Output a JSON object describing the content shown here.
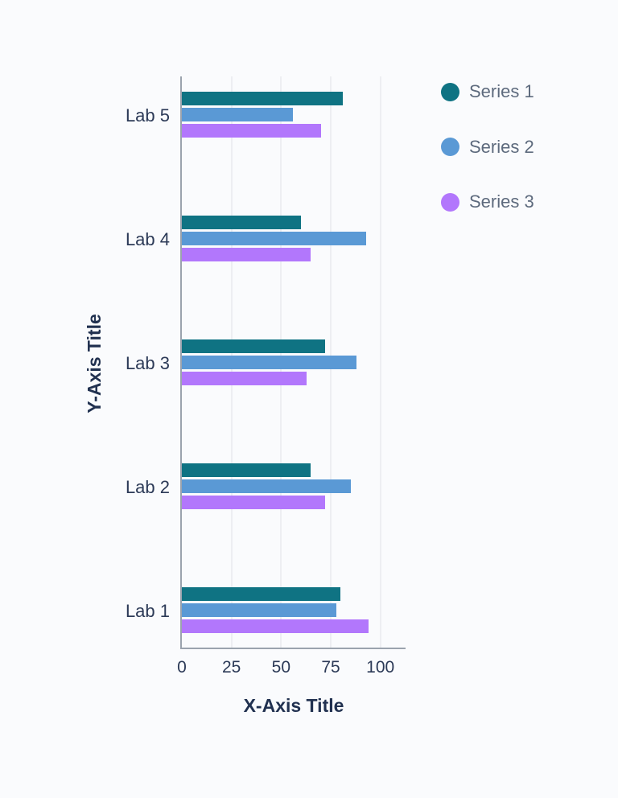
{
  "colors": {
    "background": "#fafbfd",
    "axis_line": "#9ba3ae",
    "gridline": "#edeef2",
    "tick_label": "#2c3a57",
    "axis_title": "#213150",
    "legend_text": "#5d6a7d"
  },
  "chart_data": {
    "type": "bar",
    "orientation": "horizontal",
    "title": "",
    "xlabel": "X-Axis Title",
    "ylabel": "Y-Axis Title",
    "categories": [
      "Lab 5",
      "Lab 4",
      "Lab 3",
      "Lab 2",
      "Lab 1"
    ],
    "category_order": "top-to-bottom",
    "series": [
      {
        "name": "Series 1",
        "color": "#0f7383",
        "values": [
          81,
          60,
          72,
          65,
          80
        ]
      },
      {
        "name": "Series 2",
        "color": "#5a99d5",
        "values": [
          56,
          93,
          88,
          85,
          78
        ]
      },
      {
        "name": "Series 3",
        "color": "#b277fc",
        "values": [
          70,
          65,
          63,
          72,
          94
        ]
      }
    ],
    "xticks": [
      0,
      25,
      50,
      75,
      100
    ],
    "xlim": [
      0,
      113.5
    ],
    "grid": "vertical",
    "legend_position": "right"
  }
}
